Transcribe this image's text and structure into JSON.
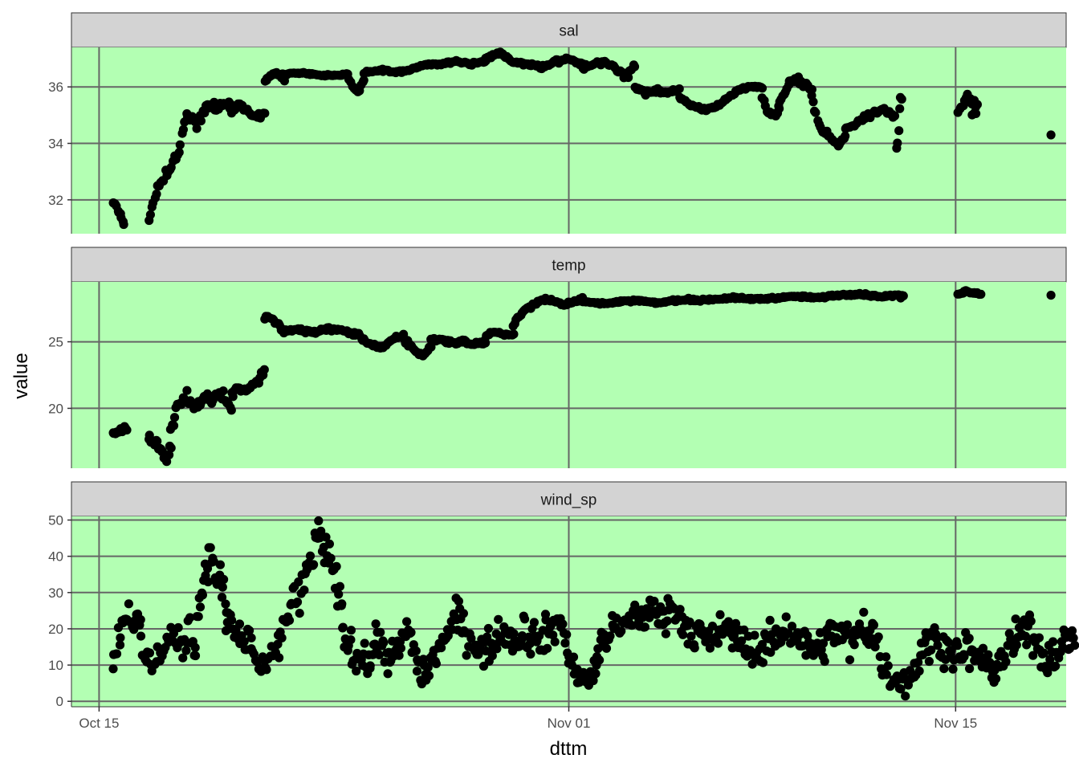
{
  "chart_data": {
    "type": "scatter",
    "facet_layout": "vertical",
    "xlabel": "dttm",
    "ylabel": "value",
    "x_ticks": [
      "Oct 15",
      "Nov 01",
      "Nov 15"
    ],
    "x_tick_days": [
      0,
      17,
      31
    ],
    "x_range_days": [
      -1,
      35
    ],
    "panel_background": "#b3ffb3",
    "grid_color": "#666666",
    "strip_background": "#d3d3d3",
    "point_color": "#000000",
    "panels": [
      {
        "name": "sal",
        "ylim": [
          30.8,
          37.4
        ],
        "y_ticks": [
          32,
          34,
          36
        ],
        "segments": [
          {
            "x0": 0.5,
            "x1": 0.9,
            "knots": [
              31.9,
              31.8,
              31.5,
              31.1
            ],
            "noise": 0.08,
            "n": 10
          },
          {
            "x0": 1.8,
            "x1": 4.2,
            "knots": [
              31.4,
              32.4,
              33.0,
              33.6,
              35.0,
              34.6,
              35.2,
              35.3
            ],
            "noise": 0.25,
            "n": 45
          },
          {
            "x0": 4.2,
            "x1": 4.8,
            "knots": [
              35.1,
              35.4,
              35.3
            ],
            "noise": 0.15,
            "n": 12
          },
          {
            "x0": 4.8,
            "x1": 6.0,
            "knots": [
              35.2,
              35.4,
              35.1,
              34.9,
              35.1
            ],
            "noise": 0.12,
            "n": 25
          },
          {
            "x0": 6.0,
            "x1": 6.6,
            "knots": [
              36.2,
              36.4,
              36.5,
              36.4
            ],
            "noise": 0.05,
            "n": 15
          },
          {
            "x0": 6.6,
            "x1": 9.0,
            "knots": [
              36.45,
              36.5,
              36.4,
              36.45
            ],
            "noise": 0.03,
            "n": 45
          },
          {
            "x0": 6.6,
            "x1": 6.7,
            "knots": [
              36.3,
              36.2
            ],
            "noise": 0.04,
            "n": 2
          },
          {
            "x0": 9.0,
            "x1": 9.6,
            "knots": [
              36.4,
              36.0,
              35.8,
              36.3
            ],
            "noise": 0.08,
            "n": 12
          },
          {
            "x0": 9.6,
            "x1": 14.0,
            "knots": [
              36.5,
              36.6,
              36.5,
              36.6,
              36.8,
              36.8,
              36.9,
              36.8,
              36.9
            ],
            "noise": 0.05,
            "n": 90
          },
          {
            "x0": 14.0,
            "x1": 17.5,
            "knots": [
              37.0,
              37.2,
              36.9,
              36.8,
              36.7,
              36.9,
              37.0,
              36.8
            ],
            "noise": 0.06,
            "n": 70
          },
          {
            "x0": 17.5,
            "x1": 19.4,
            "knots": [
              36.6,
              36.8,
              36.9,
              36.7,
              36.3,
              36.8
            ],
            "noise": 0.12,
            "n": 30
          },
          {
            "x0": 19.4,
            "x1": 21.0,
            "knots": [
              36.0,
              35.8,
              35.9,
              35.8,
              35.9
            ],
            "noise": 0.1,
            "n": 30
          },
          {
            "x0": 21.0,
            "x1": 24.0,
            "knots": [
              35.6,
              35.3,
              35.2,
              35.4,
              35.8,
              36.0,
              36.0
            ],
            "noise": 0.06,
            "n": 60
          },
          {
            "x0": 24.0,
            "x1": 24.6,
            "knots": [
              35.6,
              35.1,
              35.0,
              35.2
            ],
            "noise": 0.08,
            "n": 12
          },
          {
            "x0": 24.6,
            "x1": 25.8,
            "knots": [
              35.3,
              36.0,
              36.3,
              36.1,
              35.9
            ],
            "noise": 0.1,
            "n": 25
          },
          {
            "x0": 25.8,
            "x1": 27.0,
            "knots": [
              35.6,
              34.5,
              34.3,
              33.9,
              34.2
            ],
            "noise": 0.12,
            "n": 25
          },
          {
            "x0": 27.0,
            "x1": 28.8,
            "knots": [
              34.5,
              34.7,
              34.9,
              35.1,
              35.2,
              35.0
            ],
            "noise": 0.1,
            "n": 35
          },
          {
            "x0": 28.85,
            "x1": 29.05,
            "knots": [
              33.9,
              34.2,
              35.5,
              35.6
            ],
            "noise": 0.1,
            "n": 6
          },
          {
            "x0": 31.1,
            "x1": 31.8,
            "knots": [
              35.2,
              35.6,
              35.5,
              35.3
            ],
            "noise": 0.12,
            "n": 14
          },
          {
            "x0": 31.6,
            "x1": 31.75,
            "knots": [
              35.0,
              35.1
            ],
            "noise": 0.05,
            "n": 3
          },
          {
            "x0": 34.45,
            "x1": 34.45,
            "knots": [
              34.3,
              34.3
            ],
            "noise": 0.0,
            "n": 1
          }
        ]
      },
      {
        "name": "temp",
        "ylim": [
          15.5,
          29.5
        ],
        "y_ticks": [
          20,
          25
        ],
        "segments": [
          {
            "x0": 0.5,
            "x1": 1.0,
            "knots": [
              18.0,
              18.2,
              18.4,
              18.5
            ],
            "noise": 0.15,
            "n": 12
          },
          {
            "x0": 1.8,
            "x1": 2.6,
            "knots": [
              17.9,
              17.5,
              17.0,
              16.2,
              17.2
            ],
            "noise": 0.35,
            "n": 20
          },
          {
            "x0": 2.6,
            "x1": 4.0,
            "knots": [
              18.5,
              20.3,
              20.8,
              20.0,
              20.6,
              21.0
            ],
            "noise": 0.45,
            "n": 30
          },
          {
            "x0": 4.0,
            "x1": 4.8,
            "knots": [
              20.5,
              21.2,
              21.0,
              19.8
            ],
            "noise": 0.35,
            "n": 15
          },
          {
            "x0": 4.8,
            "x1": 6.0,
            "knots": [
              21.0,
              21.5,
              21.4,
              21.7,
              22.0,
              22.8
            ],
            "noise": 0.25,
            "n": 22
          },
          {
            "x0": 6.0,
            "x1": 6.6,
            "knots": [
              26.8,
              26.9,
              26.4,
              26.0
            ],
            "noise": 0.2,
            "n": 12
          },
          {
            "x0": 6.6,
            "x1": 9.5,
            "knots": [
              25.8,
              25.9,
              25.7,
              26.0,
              25.8,
              25.4
            ],
            "noise": 0.15,
            "n": 55
          },
          {
            "x0": 9.5,
            "x1": 11.0,
            "knots": [
              25.2,
              24.8,
              24.5,
              25.2,
              25.5
            ],
            "noise": 0.15,
            "n": 30
          },
          {
            "x0": 11.0,
            "x1": 12.0,
            "knots": [
              25.2,
              24.8,
              24.2,
              23.9,
              24.8
            ],
            "noise": 0.2,
            "n": 20
          },
          {
            "x0": 12.0,
            "x1": 14.0,
            "knots": [
              25.1,
              25.2,
              24.9,
              25.0,
              24.8,
              25.0
            ],
            "noise": 0.15,
            "n": 40
          },
          {
            "x0": 14.0,
            "x1": 15.0,
            "knots": [
              25.5,
              25.7,
              25.6,
              25.5
            ],
            "noise": 0.1,
            "n": 20
          },
          {
            "x0": 15.0,
            "x1": 17.5,
            "knots": [
              26.3,
              27.3,
              27.8,
              28.2,
              28.1,
              27.8,
              28.0,
              28.3
            ],
            "noise": 0.12,
            "n": 50
          },
          {
            "x0": 17.5,
            "x1": 21.5,
            "knots": [
              28.0,
              27.9,
              28.0,
              28.1,
              27.9,
              28.1,
              28.2
            ],
            "noise": 0.08,
            "n": 80
          },
          {
            "x0": 21.5,
            "x1": 29.0,
            "knots": [
              28.1,
              28.2,
              28.3,
              28.2,
              28.3,
              28.4,
              28.3,
              28.5,
              28.6,
              28.4,
              28.5
            ],
            "noise": 0.08,
            "n": 150
          },
          {
            "x0": 29.0,
            "x1": 29.1,
            "knots": [
              28.3,
              28.5
            ],
            "noise": 0.1,
            "n": 3
          },
          {
            "x0": 31.1,
            "x1": 31.9,
            "knots": [
              28.6,
              28.8,
              28.7,
              28.6
            ],
            "noise": 0.08,
            "n": 16
          },
          {
            "x0": 34.45,
            "x1": 34.45,
            "knots": [
              28.5,
              28.5
            ],
            "noise": 0.0,
            "n": 1
          }
        ]
      },
      {
        "name": "wind_sp",
        "ylim": [
          -1.5,
          51
        ],
        "y_ticks": [
          0,
          10,
          20,
          30,
          40,
          50
        ],
        "segments": [
          {
            "x0": 0.5,
            "x1": 1.5,
            "knots": [
              10,
              18,
              22,
              25,
              20,
              22
            ],
            "noise": 4.5,
            "n": 22
          },
          {
            "x0": 1.5,
            "x1": 2.5,
            "knots": [
              15,
              12,
              10,
              14,
              12,
              18
            ],
            "noise": 4.5,
            "n": 20
          },
          {
            "x0": 2.5,
            "x1": 3.5,
            "knots": [
              18,
              16,
              15,
              20,
              14
            ],
            "noise": 4,
            "n": 20
          },
          {
            "x0": 3.5,
            "x1": 4.6,
            "knots": [
              20,
              30,
              38,
              40,
              35,
              33,
              25
            ],
            "noise": 5,
            "n": 28
          },
          {
            "x0": 4.6,
            "x1": 5.5,
            "knots": [
              22,
              20,
              18,
              15,
              20
            ],
            "noise": 4.5,
            "n": 22
          },
          {
            "x0": 5.5,
            "x1": 6.5,
            "knots": [
              15,
              10,
              8,
              12,
              15
            ],
            "noise": 4,
            "n": 20
          },
          {
            "x0": 6.5,
            "x1": 7.5,
            "knots": [
              18,
              22,
              25,
              30,
              28,
              35
            ],
            "noise": 5,
            "n": 22
          },
          {
            "x0": 7.5,
            "x1": 8.8,
            "knots": [
              38,
              40,
              45,
              42,
              38,
              32,
              25
            ],
            "noise": 5,
            "n": 30
          },
          {
            "x0": 8.8,
            "x1": 10.0,
            "knots": [
              20,
              15,
              12,
              14,
              10,
              15
            ],
            "noise": 5,
            "n": 30
          },
          {
            "x0": 10.0,
            "x1": 11.5,
            "knots": [
              18,
              14,
              12,
              15,
              20,
              12
            ],
            "noise": 4.5,
            "n": 35
          },
          {
            "x0": 11.5,
            "x1": 13.0,
            "knots": [
              10,
              8,
              12,
              16,
              20,
              25
            ],
            "noise": 4.5,
            "n": 35
          },
          {
            "x0": 13.0,
            "x1": 15.0,
            "knots": [
              22,
              18,
              14,
              15,
              20,
              18
            ],
            "noise": 4.5,
            "n": 45
          },
          {
            "x0": 15.0,
            "x1": 17.0,
            "knots": [
              16,
              20,
              18,
              17,
              20,
              22,
              15
            ],
            "noise": 5,
            "n": 45
          },
          {
            "x0": 17.0,
            "x1": 18.0,
            "knots": [
              12,
              8,
              5,
              6,
              10
            ],
            "noise": 3,
            "n": 25
          },
          {
            "x0": 18.0,
            "x1": 20.5,
            "knots": [
              14,
              18,
              20,
              22,
              24,
              25,
              22
            ],
            "noise": 4.5,
            "n": 55
          },
          {
            "x0": 20.5,
            "x1": 23.0,
            "knots": [
              26,
              25,
              20,
              18,
              16,
              20,
              18
            ],
            "noise": 4.5,
            "n": 55
          },
          {
            "x0": 23.0,
            "x1": 26.0,
            "knots": [
              18,
              15,
              14,
              18,
              20,
              16,
              14
            ],
            "noise": 4.5,
            "n": 65
          },
          {
            "x0": 26.0,
            "x1": 28.0,
            "knots": [
              14,
              18,
              20,
              15,
              22,
              18
            ],
            "noise": 5,
            "n": 45
          },
          {
            "x0": 28.0,
            "x1": 29.5,
            "knots": [
              20,
              10,
              6,
              5,
              8
            ],
            "noise": 4,
            "n": 30
          },
          {
            "x0": 29.5,
            "x1": 31.5,
            "knots": [
              10,
              15,
              18,
              14,
              12,
              15
            ],
            "noise": 4.5,
            "n": 45
          },
          {
            "x0": 31.5,
            "x1": 33.0,
            "knots": [
              12,
              14,
              10,
              8,
              12,
              15
            ],
            "noise": 4,
            "n": 35
          },
          {
            "x0": 33.0,
            "x1": 35.3,
            "knots": [
              15,
              18,
              20,
              15,
              12,
              14,
              16,
              20
            ],
            "noise": 5,
            "n": 55
          }
        ]
      }
    ]
  }
}
